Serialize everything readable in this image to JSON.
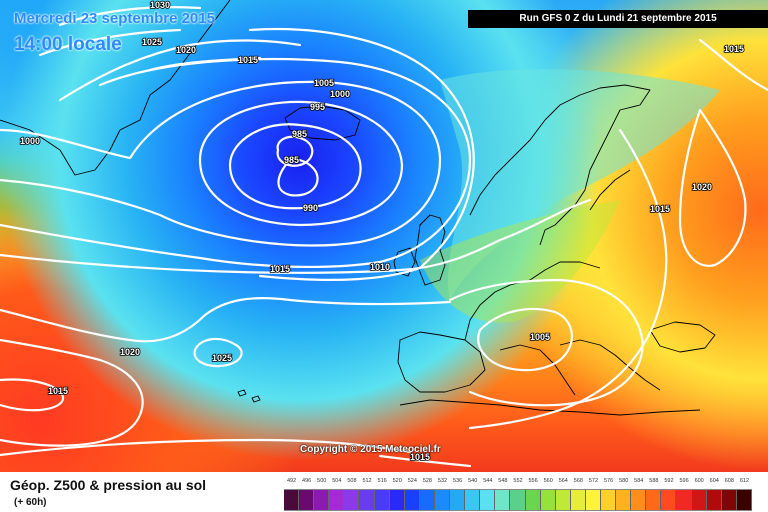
{
  "header": {
    "date": "Mercredi 23 septembre 2015",
    "time": "14:00 locale",
    "run": "Run GFS 0 Z du Lundi 21 septembre 2015"
  },
  "copyright": "Copyright © 2015 Meteociel.fr",
  "footer": {
    "product": "Géop. Z500 & pression au sol",
    "forecast_hour": "(+ 60h)"
  },
  "legend": {
    "ticks": [
      "492",
      "496",
      "500",
      "504",
      "508",
      "512",
      "516",
      "520",
      "524",
      "528",
      "532",
      "536",
      "540",
      "544",
      "548",
      "552",
      "556",
      "560",
      "564",
      "568",
      "572",
      "576",
      "580",
      "584",
      "588",
      "592",
      "596",
      "600",
      "604",
      "608",
      "612"
    ],
    "colors": [
      "#4a0a3c",
      "#6a0a70",
      "#8a1ab0",
      "#a52ad6",
      "#8a3ae8",
      "#6a3cf0",
      "#4a3cf6",
      "#2a2af8",
      "#1a40ff",
      "#1a6aff",
      "#1a8cff",
      "#22aaf6",
      "#3ac8f2",
      "#5ae0f0",
      "#70e6c8",
      "#5ad08a",
      "#6ad650",
      "#96e23a",
      "#c0e836",
      "#e6ee3a",
      "#fff23a",
      "#ffd22a",
      "#ffb21e",
      "#ff8e1a",
      "#ff6a1a",
      "#ff4a22",
      "#f02a22",
      "#d01616",
      "#b00a0a",
      "#800606",
      "#3a0000"
    ]
  },
  "isobar_labels": [
    "1030",
    "1025",
    "1020",
    "1015",
    "1005",
    "1000",
    "995",
    "985",
    "985",
    "990",
    "1000",
    "1015",
    "1010",
    "1015",
    "1020",
    "1025",
    "1020",
    "1015",
    "1005",
    "1015",
    "1015"
  ],
  "colors": {
    "title": "#2a8cff",
    "isobar": "#ffffff",
    "coastline": "#000000"
  }
}
